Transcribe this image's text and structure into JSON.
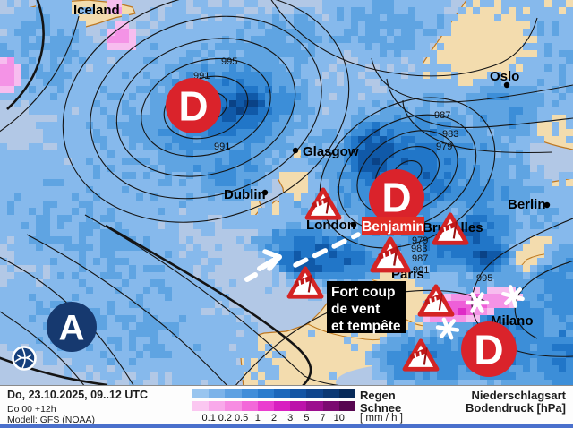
{
  "map": {
    "region_label": "Iceland",
    "cities": [
      "Oslo",
      "Glasgow",
      "Dublin",
      "London",
      "Berlin",
      "Bruxelles",
      "Paris",
      "Milano"
    ],
    "storm_label": "Benjamin",
    "pressure_centers": [
      {
        "letter": "D",
        "type": "low"
      },
      {
        "letter": "D",
        "type": "low"
      },
      {
        "letter": "D",
        "type": "low"
      },
      {
        "letter": "A",
        "type": "high"
      }
    ],
    "isobar_labels": [
      "995",
      "991",
      "991",
      "987",
      "983",
      "979",
      "979",
      "983",
      "987",
      "991",
      "995"
    ],
    "warning_box": {
      "line1": "Fort coup",
      "line2": "de vent",
      "line3": "et tempête"
    },
    "warning_symbols": {
      "type": "wind-warning-triangle",
      "count": 6
    },
    "snow_symbols": {
      "type": "snowflake",
      "count": 3
    },
    "colors": {
      "low_center": "#da232b",
      "high_center": "#16396f",
      "storm_label_bg": "#e02d26",
      "warning_red": "#d42424",
      "land": "#f3dcae",
      "ocean": "#b2c8e6"
    }
  },
  "footer": {
    "datetime": "Do, 23.10.2025, 09..12 UTC",
    "run": "Do 00 +12h",
    "model": "Modell: GFS (NOAA)",
    "legend": {
      "rain_label": "Regen",
      "snow_label": "Schnee",
      "unit": "[ mm / h ]",
      "ticks": [
        "0.1",
        "0.2",
        "0.5",
        "1",
        "2",
        "3",
        "5",
        "7",
        "10"
      ],
      "rain_colors": [
        "#99c5ef",
        "#7cb3e9",
        "#5ea1e2",
        "#418ed9",
        "#2b7ccd",
        "#1c68bb",
        "#1455a4",
        "#0f458c",
        "#0b3873",
        "#072a59"
      ],
      "snow_colors": [
        "#fbc7f1",
        "#f9a9ea",
        "#f78ce2",
        "#f368d9",
        "#ea3ecf",
        "#d81fc0",
        "#bc13aa",
        "#9c0e8e",
        "#7b0a70",
        "#570650"
      ]
    },
    "type_label": "Niederschlagsart",
    "pressure_label": "Bodendruck [hPa]"
  }
}
